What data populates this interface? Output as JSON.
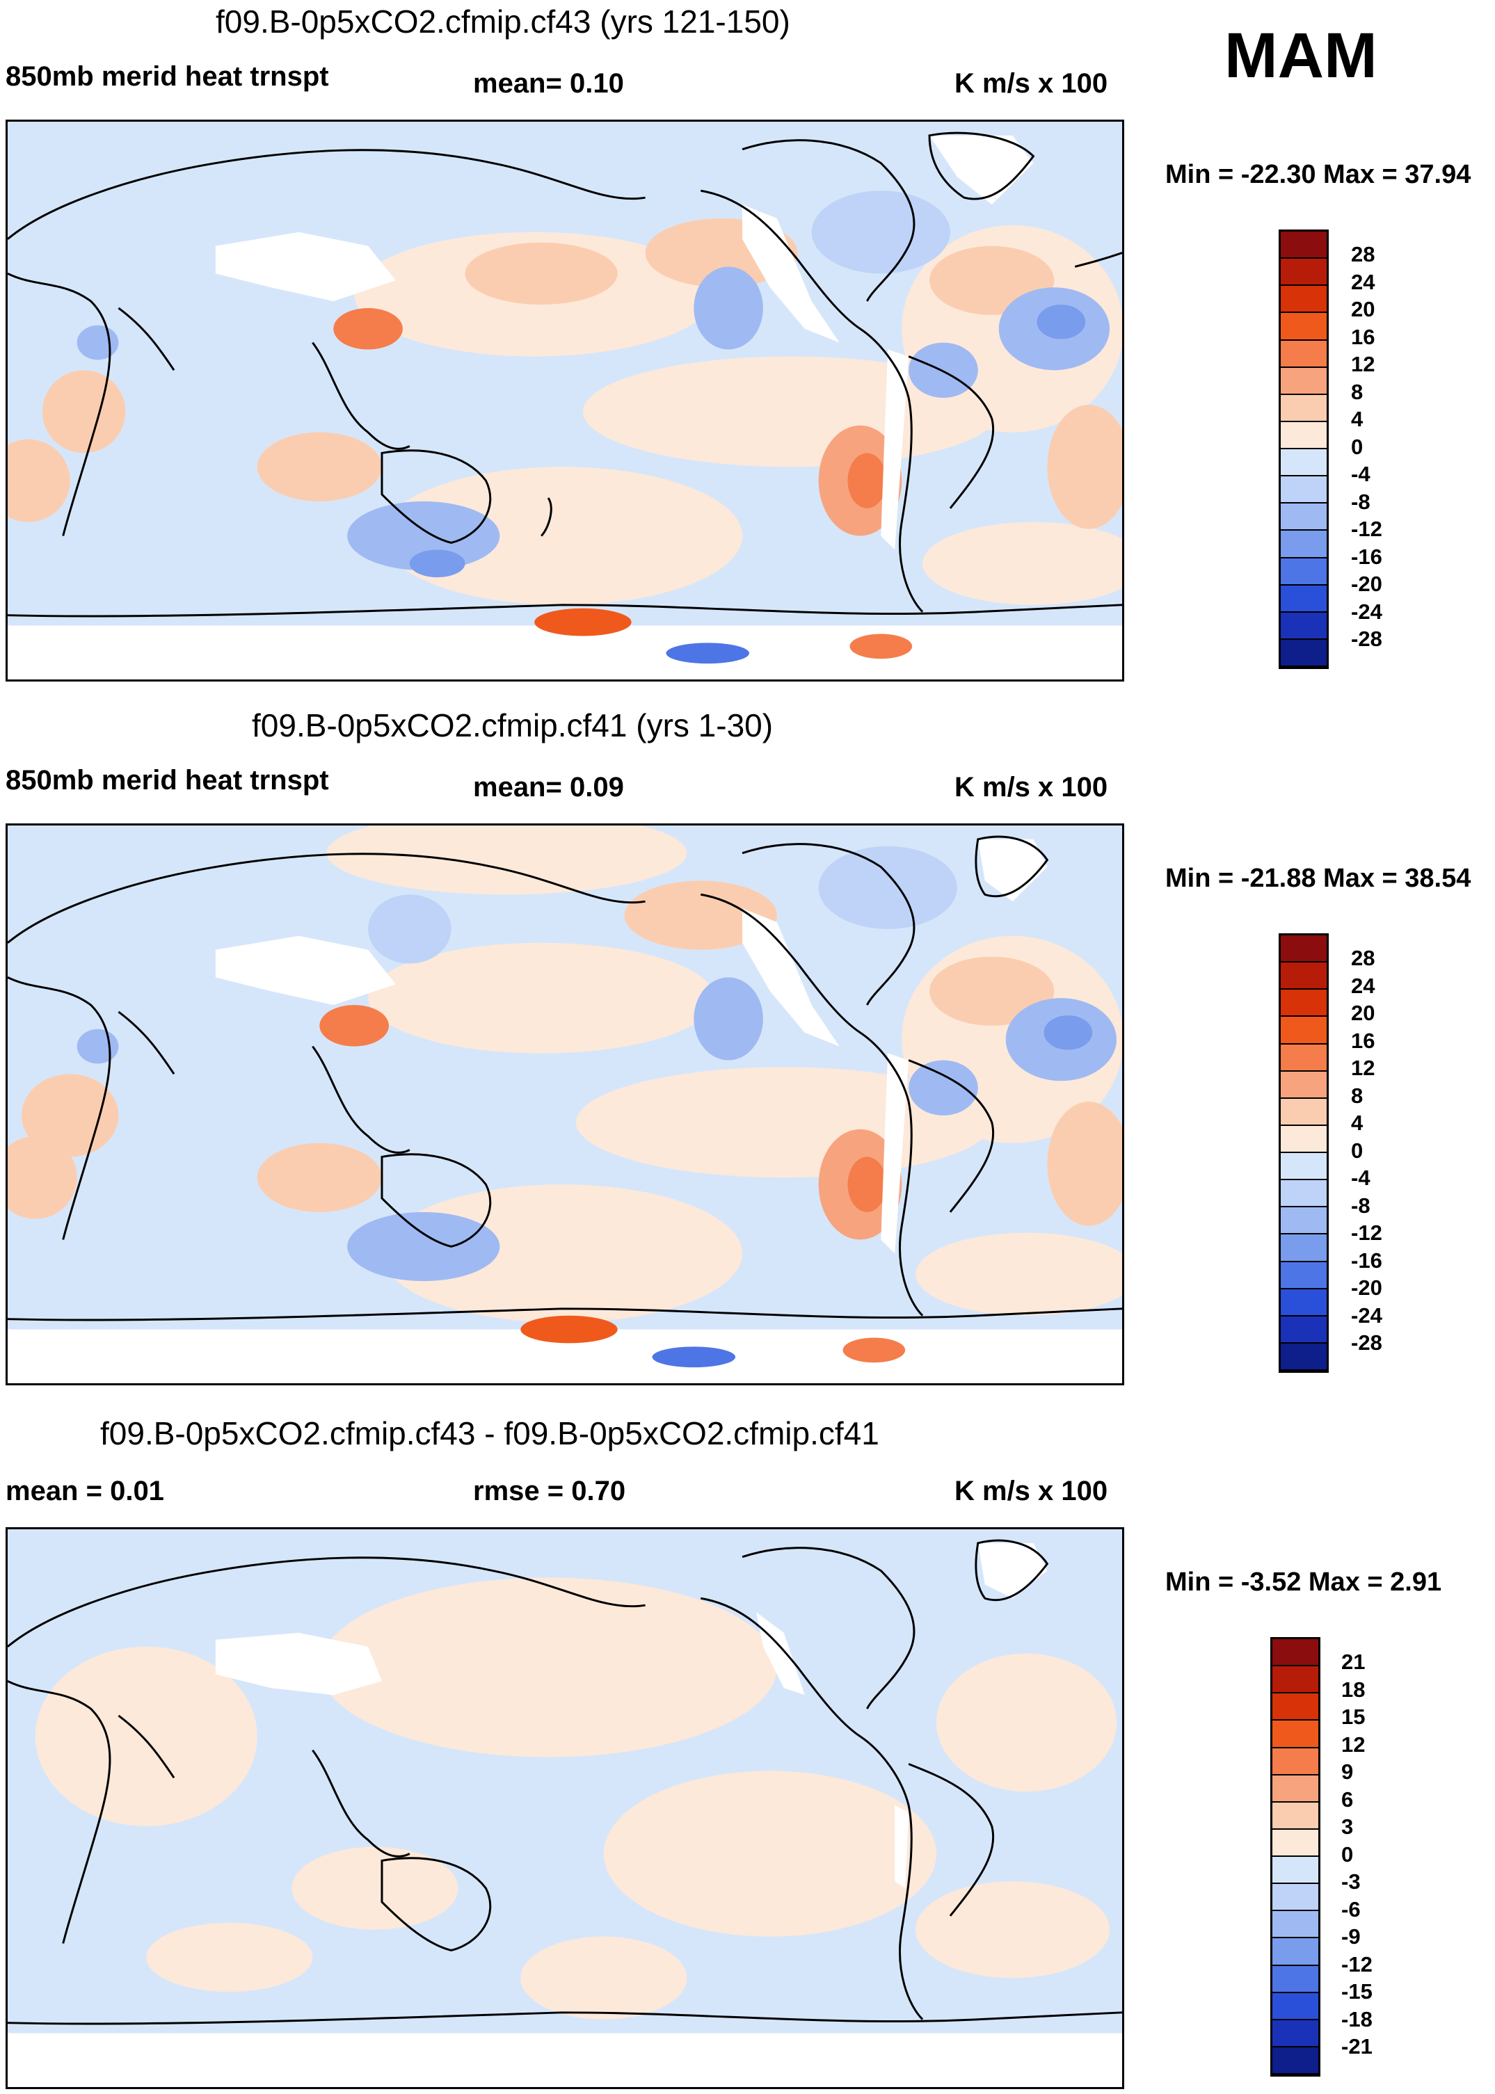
{
  "season": "MAM",
  "panels": [
    {
      "title": "f09.B-0p5xCO2.cfmip.cf43 (yrs 121-150)",
      "left_label": "850mb merid heat trnspt",
      "center_label": "mean=   0.10",
      "units": "K m/s x 100",
      "minmax": "Min = -22.30 Max =  37.94",
      "colorbar_levels": [
        "28",
        "24",
        "20",
        "16",
        "12",
        "8",
        "4",
        "0",
        "-4",
        "-8",
        "-12",
        "-16",
        "-20",
        "-24",
        "-28"
      ]
    },
    {
      "title": "f09.B-0p5xCO2.cfmip.cf41 (yrs 1-30)",
      "left_label": "850mb merid heat trnspt",
      "center_label": "mean=   0.09",
      "units": "K m/s x 100",
      "minmax": "Min = -21.88 Max =  38.54",
      "colorbar_levels": [
        "28",
        "24",
        "20",
        "16",
        "12",
        "8",
        "4",
        "0",
        "-4",
        "-8",
        "-12",
        "-16",
        "-20",
        "-24",
        "-28"
      ]
    },
    {
      "title": "f09.B-0p5xCO2.cfmip.cf43 - f09.B-0p5xCO2.cfmip.cf41",
      "left_label": "mean =   0.01",
      "center_label": "rmse =   0.70",
      "units": "K m/s x 100",
      "minmax": "Min =  -3.52 Max =   2.91",
      "colorbar_levels": [
        "21",
        "18",
        "15",
        "12",
        "9",
        "6",
        "3",
        "0",
        "-3",
        "-6",
        "-9",
        "-12",
        "-15",
        "-18",
        "-21"
      ]
    }
  ],
  "colors": {
    "palette": [
      "#8b0d0d",
      "#b71c08",
      "#d83208",
      "#ef5a1c",
      "#f47d4b",
      "#f7a47e",
      "#fbcdb0",
      "#fde9da",
      "#d6e6fa",
      "#bed3f7",
      "#9fbaf2",
      "#7a9cec",
      "#4d75e6",
      "#2a4fd8",
      "#1a32b8",
      "#0e1e8a"
    ],
    "land_missing": "#ffffff"
  }
}
